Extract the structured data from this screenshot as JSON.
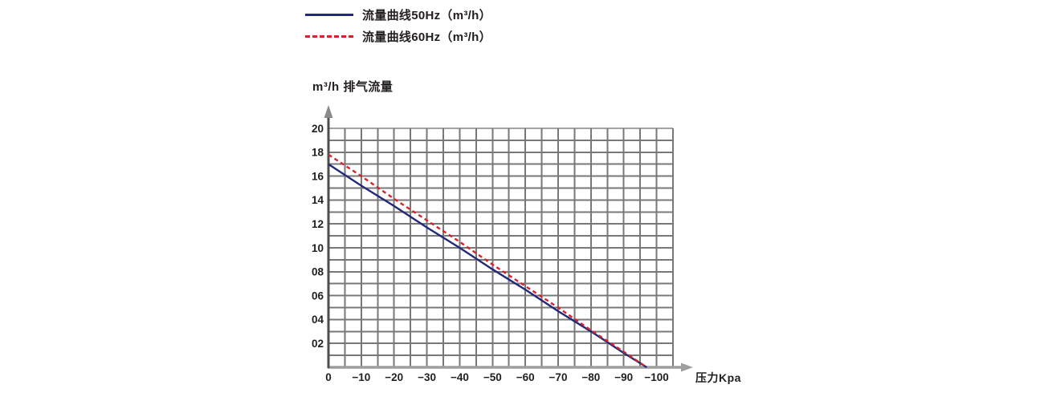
{
  "page": {
    "background": "#ffffff"
  },
  "legend": {
    "items": [
      {
        "label": "流量曲线50Hz（m³/h）",
        "color": "#22297b",
        "style": "solid"
      },
      {
        "label": "流量曲线60Hz（m³/h）",
        "color": "#d4232b",
        "style": "dashed"
      }
    ]
  },
  "chart_data": {
    "type": "line",
    "title": "",
    "y_axis_title": "m³/h 排气流量",
    "x_axis_title": "压力Kpa",
    "xlabel": "压力Kpa",
    "ylabel": "m³/h 排气流量",
    "xlim": [
      0,
      -105
    ],
    "ylim": [
      0,
      20
    ],
    "x_minor_step_kpa": 5,
    "y_minor_step": 1,
    "grid": true,
    "legend_position": "top-left",
    "x_tick_values": [
      0,
      -10,
      -20,
      -30,
      -40,
      -50,
      -60,
      -70,
      -80,
      -90,
      -100
    ],
    "x_tick_labels": [
      "0",
      "−10",
      "−20",
      "−30",
      "−40",
      "−50",
      "−60",
      "−70",
      "−80",
      "−90",
      "−100"
    ],
    "y_tick_values": [
      20,
      18,
      16,
      14,
      12,
      10,
      8,
      6,
      4,
      2
    ],
    "y_tick_labels": [
      "20",
      "18",
      "16",
      "14",
      "12",
      "10",
      "08",
      "06",
      "04",
      "02"
    ],
    "series": [
      {
        "name": "流量曲线50Hz（m³/h）",
        "color": "#22297b",
        "dash": false,
        "points": [
          [
            0,
            17.0
          ],
          [
            -10,
            15.2
          ],
          [
            -20,
            13.5
          ],
          [
            -30,
            11.7
          ],
          [
            -40,
            10.0
          ],
          [
            -50,
            8.2
          ],
          [
            -60,
            6.5
          ],
          [
            -70,
            4.7
          ],
          [
            -80,
            3.0
          ],
          [
            -90,
            1.2
          ],
          [
            -97,
            0
          ]
        ]
      },
      {
        "name": "流量曲线60Hz（m³/h）",
        "color": "#d4232b",
        "dash": true,
        "points": [
          [
            0,
            17.8
          ],
          [
            -10,
            16.0
          ],
          [
            -20,
            14.1
          ],
          [
            -30,
            12.3
          ],
          [
            -40,
            10.5
          ],
          [
            -50,
            8.6
          ],
          [
            -60,
            6.8
          ],
          [
            -70,
            5.0
          ],
          [
            -80,
            3.1
          ],
          [
            -90,
            1.3
          ],
          [
            -97,
            0
          ]
        ]
      }
    ],
    "colors": {
      "grid": "#787878",
      "grid_top_border": "#a2a2a2",
      "x_axis": "#9e9e9e",
      "y_axis": "#4d4d4d",
      "y_axis_arrow": "#8a8a8a",
      "text": "#221e1f"
    }
  }
}
